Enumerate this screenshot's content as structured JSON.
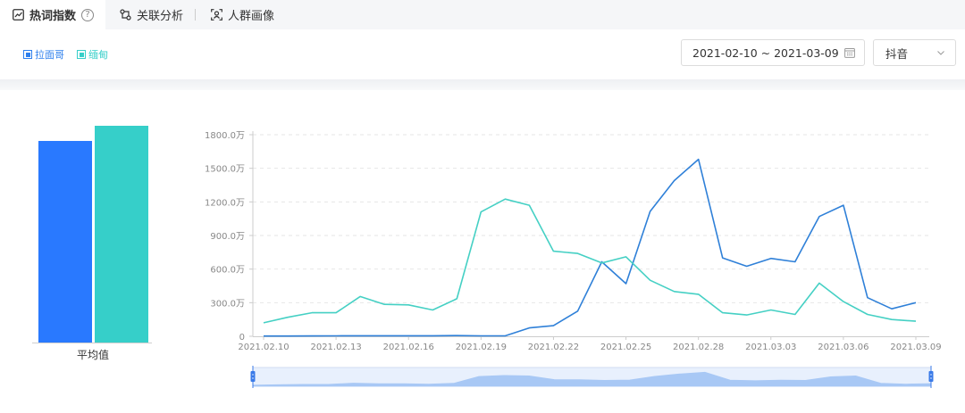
{
  "tabs": {
    "active_label": "热词指数",
    "help_glyph": "?",
    "relation_label": "关联分析",
    "crowd_label": "人群画像"
  },
  "legend": {
    "items": [
      {
        "label": "拉面哥",
        "color": "#2f80ed"
      },
      {
        "label": "缅甸",
        "color": "#36cfc9"
      }
    ]
  },
  "filters": {
    "date_range": "2021-02-10 ~ 2021-03-09",
    "platform": "抖音"
  },
  "chart_data": [
    {
      "type": "bar",
      "categories": [
        "平均值"
      ],
      "series": [
        {
          "name": "拉面哥",
          "values": [
            0.93
          ],
          "color": "#2979ff"
        },
        {
          "name": "缅甸",
          "values": [
            1.0
          ],
          "color": "#36cfc9"
        }
      ],
      "xlabel": "平均值"
    },
    {
      "type": "line",
      "x": [
        "2021.02.10",
        "2021.02.11",
        "2021.02.12",
        "2021.02.13",
        "2021.02.14",
        "2021.02.15",
        "2021.02.16",
        "2021.02.17",
        "2021.02.18",
        "2021.02.19",
        "2021.02.20",
        "2021.02.21",
        "2021.02.22",
        "2021.02.23",
        "2021.02.24",
        "2021.02.25",
        "2021.02.26",
        "2021.02.27",
        "2021.02.28",
        "2021.03.01",
        "2021.03.02",
        "2021.03.03",
        "2021.03.04",
        "2021.03.05",
        "2021.03.06",
        "2021.03.07",
        "2021.03.08",
        "2021.03.09"
      ],
      "tick_labels": [
        "2021.02.10",
        "2021.02.13",
        "2021.02.16",
        "2021.02.19",
        "2021.02.22",
        "2021.02.25",
        "2021.02.28",
        "2021.03.03",
        "2021.03.06",
        "2021.03.09"
      ],
      "y_ticks": [
        0,
        300,
        600,
        900,
        1200,
        1500,
        1800
      ],
      "y_tick_labels": [
        "0",
        "300.0万",
        "600.0万",
        "900.0万",
        "1200.0万",
        "1500.0万",
        "1800.0万"
      ],
      "ylim": [
        0,
        1800
      ],
      "grid": true,
      "series": [
        {
          "name": "拉面哥",
          "color": "#2f80d8",
          "values": [
            2,
            2,
            3,
            4,
            5,
            5,
            5,
            5,
            6,
            4,
            4,
            75,
            95,
            225,
            665,
            470,
            1115,
            1390,
            1580,
            700,
            625,
            695,
            665,
            1070,
            1170,
            345,
            245,
            300
          ]
        },
        {
          "name": "缅甸",
          "color": "#45d0c4",
          "values": [
            120,
            170,
            210,
            210,
            355,
            285,
            280,
            235,
            335,
            1110,
            1225,
            1170,
            760,
            740,
            655,
            710,
            500,
            400,
            375,
            210,
            190,
            235,
            195,
            475,
            310,
            195,
            150,
            135
          ]
        }
      ]
    }
  ]
}
